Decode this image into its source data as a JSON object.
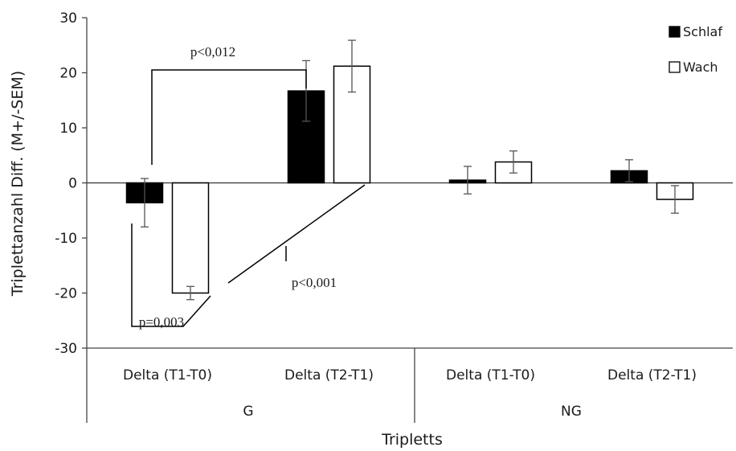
{
  "chart_data": {
    "type": "bar",
    "ylabel": "Triplettanzahl Diff.  (M+/-SEM)",
    "xlabel": "Tripletts",
    "ylim": [
      -30,
      30
    ],
    "yticks": [
      -30,
      -20,
      -10,
      0,
      10,
      20,
      30
    ],
    "categories": [
      "Delta (T1-T0)",
      "Delta (T2-T1)",
      "Delta (T1-T0)",
      "Delta (T2-T1)"
    ],
    "groups": [
      {
        "label": "G",
        "categories": [
          0,
          1
        ]
      },
      {
        "label": "NG",
        "categories": [
          2,
          3
        ]
      }
    ],
    "series": [
      {
        "name": "Schlaf",
        "color": "#000000",
        "values": [
          -3.6,
          16.7,
          0.5,
          2.2
        ],
        "sem": [
          4.4,
          5.5,
          2.5,
          2.0
        ]
      },
      {
        "name": "Wach",
        "color": "#ffffff",
        "values": [
          -20.0,
          21.2,
          3.8,
          -3.0
        ],
        "sem": [
          1.2,
          4.7,
          2.0,
          2.5
        ]
      }
    ],
    "legend_position": "top-right",
    "annotations": [
      {
        "text": "p<0,012"
      },
      {
        "text": "p<0,001"
      },
      {
        "text": "p=0,003"
      }
    ]
  }
}
